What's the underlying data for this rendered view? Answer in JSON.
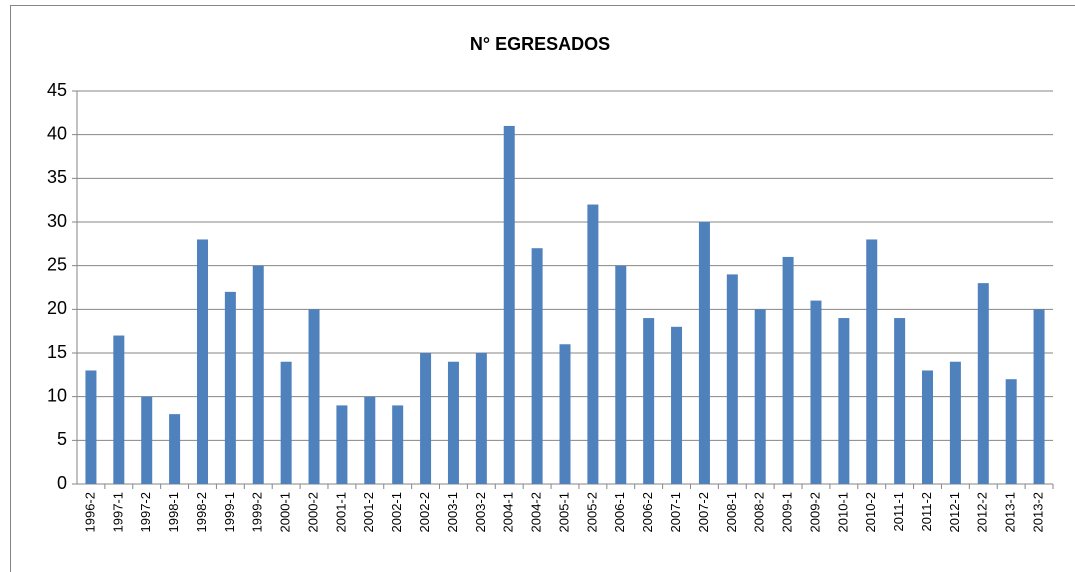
{
  "chart_data": {
    "type": "bar",
    "title": "N° EGRESADOS",
    "categories": [
      "1996-2",
      "1997-1",
      "1997-2",
      "1998-1",
      "1998-2",
      "1999-1",
      "1999-2",
      "2000-1",
      "2000-2",
      "2001-1",
      "2001-2",
      "2002-1",
      "2002-2",
      "2003-1",
      "2003-2",
      "2004-1",
      "2004-2",
      "2005-1",
      "2005-2",
      "2006-1",
      "2006-2",
      "2007-1",
      "2007-2",
      "2008-1",
      "2008-2",
      "2009-1",
      "2009-2",
      "2010-1",
      "2010-2",
      "2011-1",
      "2011-2",
      "2012-1",
      "2012-2",
      "2013-1",
      "2013-2"
    ],
    "values": [
      13,
      17,
      10,
      8,
      28,
      22,
      25,
      14,
      20,
      9,
      10,
      9,
      15,
      14,
      15,
      41,
      27,
      16,
      32,
      25,
      19,
      18,
      30,
      24,
      20,
      26,
      21,
      19,
      28,
      19,
      13,
      14,
      23,
      12,
      20
    ],
    "color": "#4f81bd",
    "ylim": [
      0,
      45
    ],
    "yticks": [
      0,
      5,
      10,
      15,
      20,
      25,
      30,
      35,
      40,
      45
    ],
    "grid": true
  }
}
